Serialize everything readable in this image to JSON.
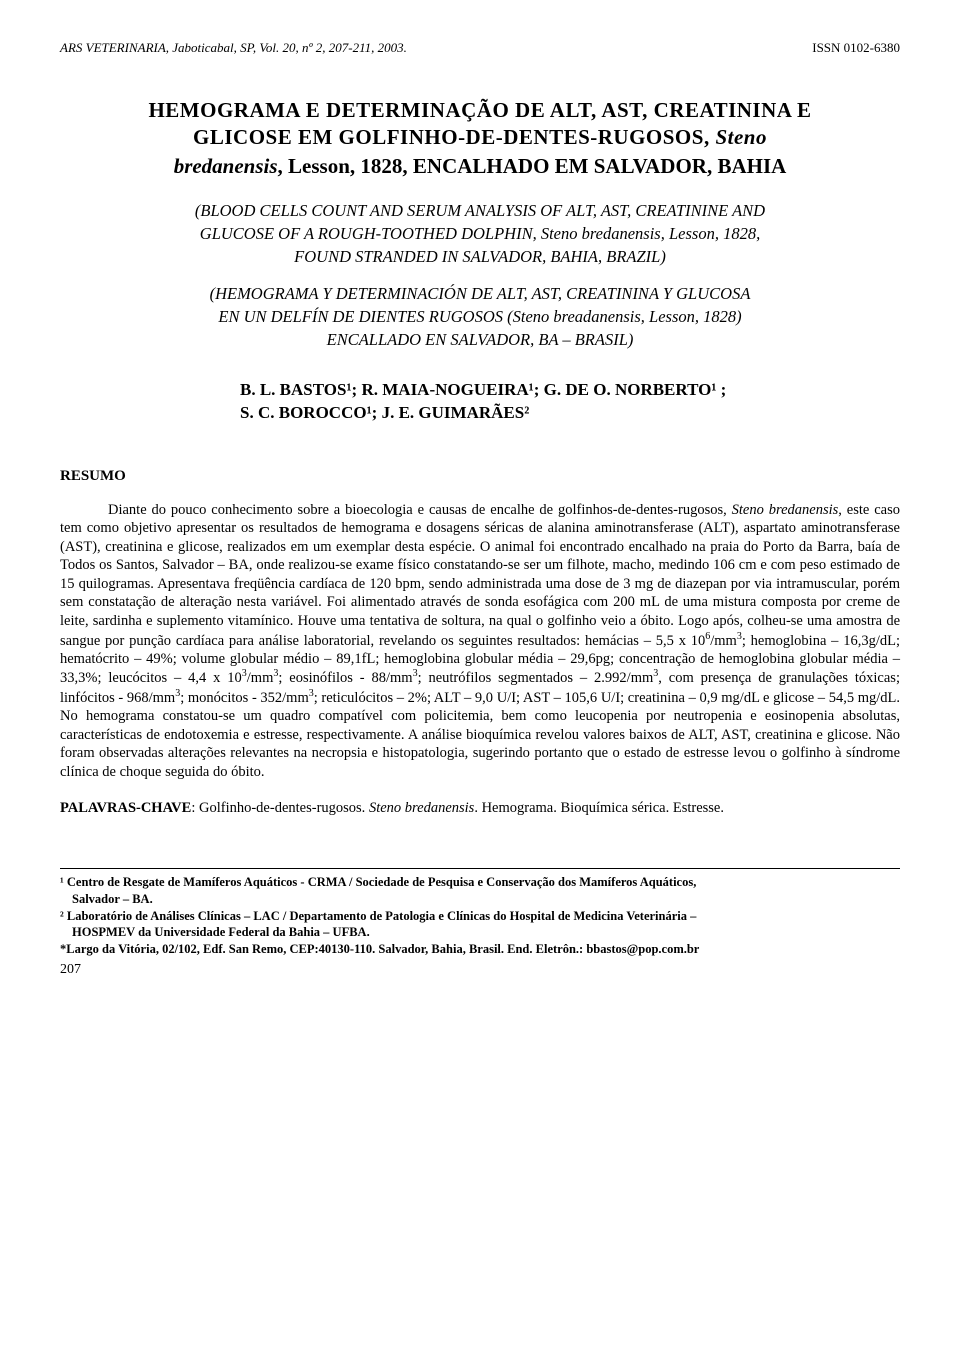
{
  "header": {
    "journal": "ARS VETERINARIA, Jaboticabal, SP, Vol. 20, nº 2, 207-211, 2003.",
    "issn": "ISSN 0102-6380"
  },
  "title": {
    "line1_a": "HEMOGRAMA E DETERMINAÇÃO DE ALT, AST, CREATININA E",
    "line1_b": "GLICOSE EM GOLFINHO-DE-DENTES-RUGOSOS, ",
    "line1_species": "Steno",
    "line2_species": "bredanensis",
    "line2_rest": ", Lesson, 1828, ENCALHADO EM SALVADOR, BAHIA"
  },
  "subtitle_en": {
    "l1": "(BLOOD CELLS COUNT AND SERUM ANALYSIS OF ALT, AST, CREATININE AND",
    "l2": "GLUCOSE OF A ROUGH-TOOTHED DOLPHIN, Steno bredanensis, Lesson, 1828,",
    "l3": "FOUND STRANDED IN SALVADOR, BAHIA, BRAZIL)"
  },
  "subtitle_es": {
    "l1": "(HEMOGRAMA Y DETERMINACIÓN DE ALT, AST, CREATININA Y GLUCOSA",
    "l2": "EN UN DELFÍN DE DIENTES RUGOSOS (Steno breadanensis, Lesson, 1828)",
    "l3": "ENCALLADO EN SALVADOR, BA – BRASIL)"
  },
  "authors": {
    "l1": "B. L. BASTOS¹; R. MAIA-NOGUEIRA¹; G. DE O. NORBERTO¹ ;",
    "l2": "S. C. BOROCCO¹; J. E. GUIMARÃES²"
  },
  "resumo": {
    "heading": "RESUMO",
    "body_html": "Diante do pouco conhecimento sobre a bioecologia e causas de encalhe de golfinhos-de-dentes-rugosos, <span class=\"ital\">Steno bredanensis</span>, este caso tem como objetivo apresentar os resultados de hemograma e dosagens séricas de alanina aminotransferase (ALT), aspartato aminotransferase (AST), creatinina e glicose, realizados em um exemplar desta espécie. O animal foi encontrado encalhado na praia do Porto da Barra, baía de Todos os Santos, Salvador – BA, onde realizou-se exame físico constatando-se ser um filhote, macho, medindo 106 cm e com peso estimado de 15 quilogramas. Apresentava freqüência cardíaca de 120 bpm, sendo administrada uma dose de 3 mg de diazepan por via intramuscular, porém sem constatação de alteração nesta variável. Foi alimentado através de sonda esofágica com 200 mL de uma mistura composta por creme de leite, sardinha e suplemento vitamínico. Houve uma tentativa de soltura, na qual o golfinho veio a óbito. Logo após, colheu-se uma amostra de sangue por punção cardíaca para análise laboratorial, revelando os seguintes resultados: hemácias – 5,5 x 10<sup>6</sup>/mm<sup>3</sup>; hemoglobina – 16,3g/dL; hematócrito – 49%; volume globular médio – 89,1fL; hemoglobina globular média – 29,6pg; concentração de hemoglobina globular média – 33,3%; leucócitos – 4,4 x 10<sup>3</sup>/mm<sup>3</sup>; eosinófilos - 88/mm<sup>3</sup>; neutrófilos segmentados – 2.992/mm<sup>3</sup>, com presença de granulações tóxicas; linfócitos - 968/mm<sup>3</sup>; monócitos - 352/mm<sup>3</sup>; reticulócitos – 2%; ALT – 9,0 U/I; AST – 105,6 U/I; creatinina – 0,9 mg/dL e glicose – 54,5 mg/dL. No hemograma constatou-se um quadro compatível com policitemia, bem como leucopenia por neutropenia e eosinopenia absolutas, características de endotoxemia e estresse, respectivamente. A análise bioquímica revelou valores baixos de ALT, AST, creatinina e glicose. Não foram observadas alterações relevantes na necropsia e histopatologia, sugerindo portanto que o estado de estresse levou o golfinho à síndrome clínica de choque seguida do óbito."
  },
  "keywords": {
    "label": "PALAVRAS-CHAVE",
    "text_html": ": Golfinho-de-dentes-rugosos. <span class=\"ital\">Steno bredanensis</span>. Hemograma. Bioquímica sérica. Estresse."
  },
  "footnotes": {
    "f1_l1": "¹ Centro de Resgate de Mamíferos Aquáticos - CRMA / Sociedade de Pesquisa e Conservação dos Mamíferos Aquáticos,",
    "f1_l2": "Salvador – BA.",
    "f2_l1": "² Laboratório de Análises Clínicas – LAC / Departamento de Patologia e Clínicas do Hospital de Medicina Veterinária –",
    "f2_l2": "HOSPMEV da Universidade Federal da Bahia – UFBA.",
    "f3": "*Largo da Vitória, 02/102, Edf. San Remo, CEP:40130-110. Salvador, Bahia, Brasil. End. Eletrôn.: bbastos@pop.com.br"
  },
  "page": "207"
}
